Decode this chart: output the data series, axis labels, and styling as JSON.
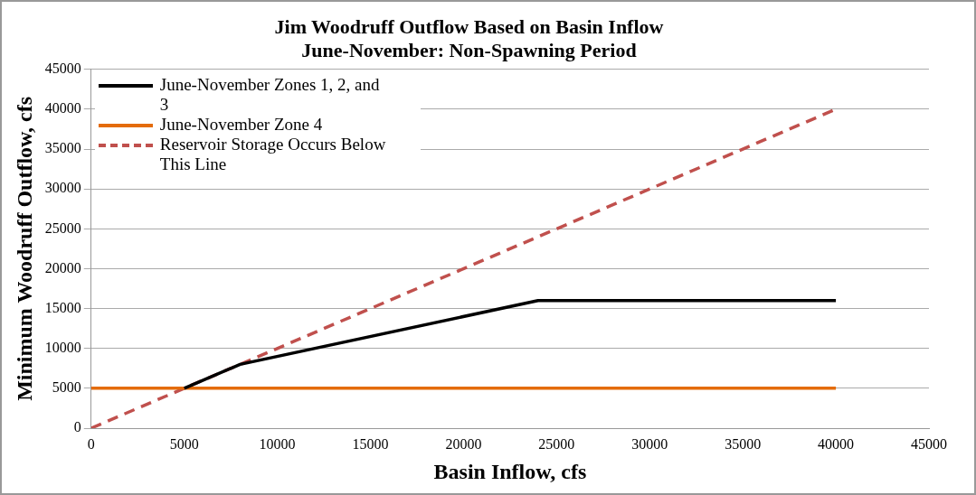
{
  "chart_data": {
    "type": "line",
    "title": "Jim Woodruff Outflow Based on Basin Inflow",
    "subtitle": "June-November: Non-Spawning Period",
    "xlabel": "Basin Inflow, cfs",
    "ylabel": "Minimum Woodruff Outflow, cfs",
    "xlim": [
      0,
      45000
    ],
    "xticks": [
      0,
      5000,
      10000,
      15000,
      20000,
      25000,
      30000,
      35000,
      40000,
      45000
    ],
    "ylim": [
      0,
      45000
    ],
    "yticks": [
      0,
      5000,
      10000,
      15000,
      20000,
      25000,
      30000,
      35000,
      40000,
      45000
    ],
    "grid": "y",
    "legend": "top left",
    "marker": "none",
    "series": [
      {
        "name": "June-November Zones 1, 2, and 3",
        "color": "#000000",
        "x": [
          5000,
          8000,
          24000,
          40000
        ],
        "values": [
          5000,
          8000,
          16000,
          16000
        ]
      },
      {
        "name": "June-November Zone 4",
        "color": "#e46c0a",
        "x": [
          0,
          40000
        ],
        "values": [
          5000,
          5000
        ]
      },
      {
        "name": "Reservoir Storage Occurs Below This Line",
        "color": "#c0504d",
        "line_style": "dashed",
        "x": [
          0,
          40000
        ],
        "values": [
          0,
          40000
        ]
      }
    ]
  }
}
